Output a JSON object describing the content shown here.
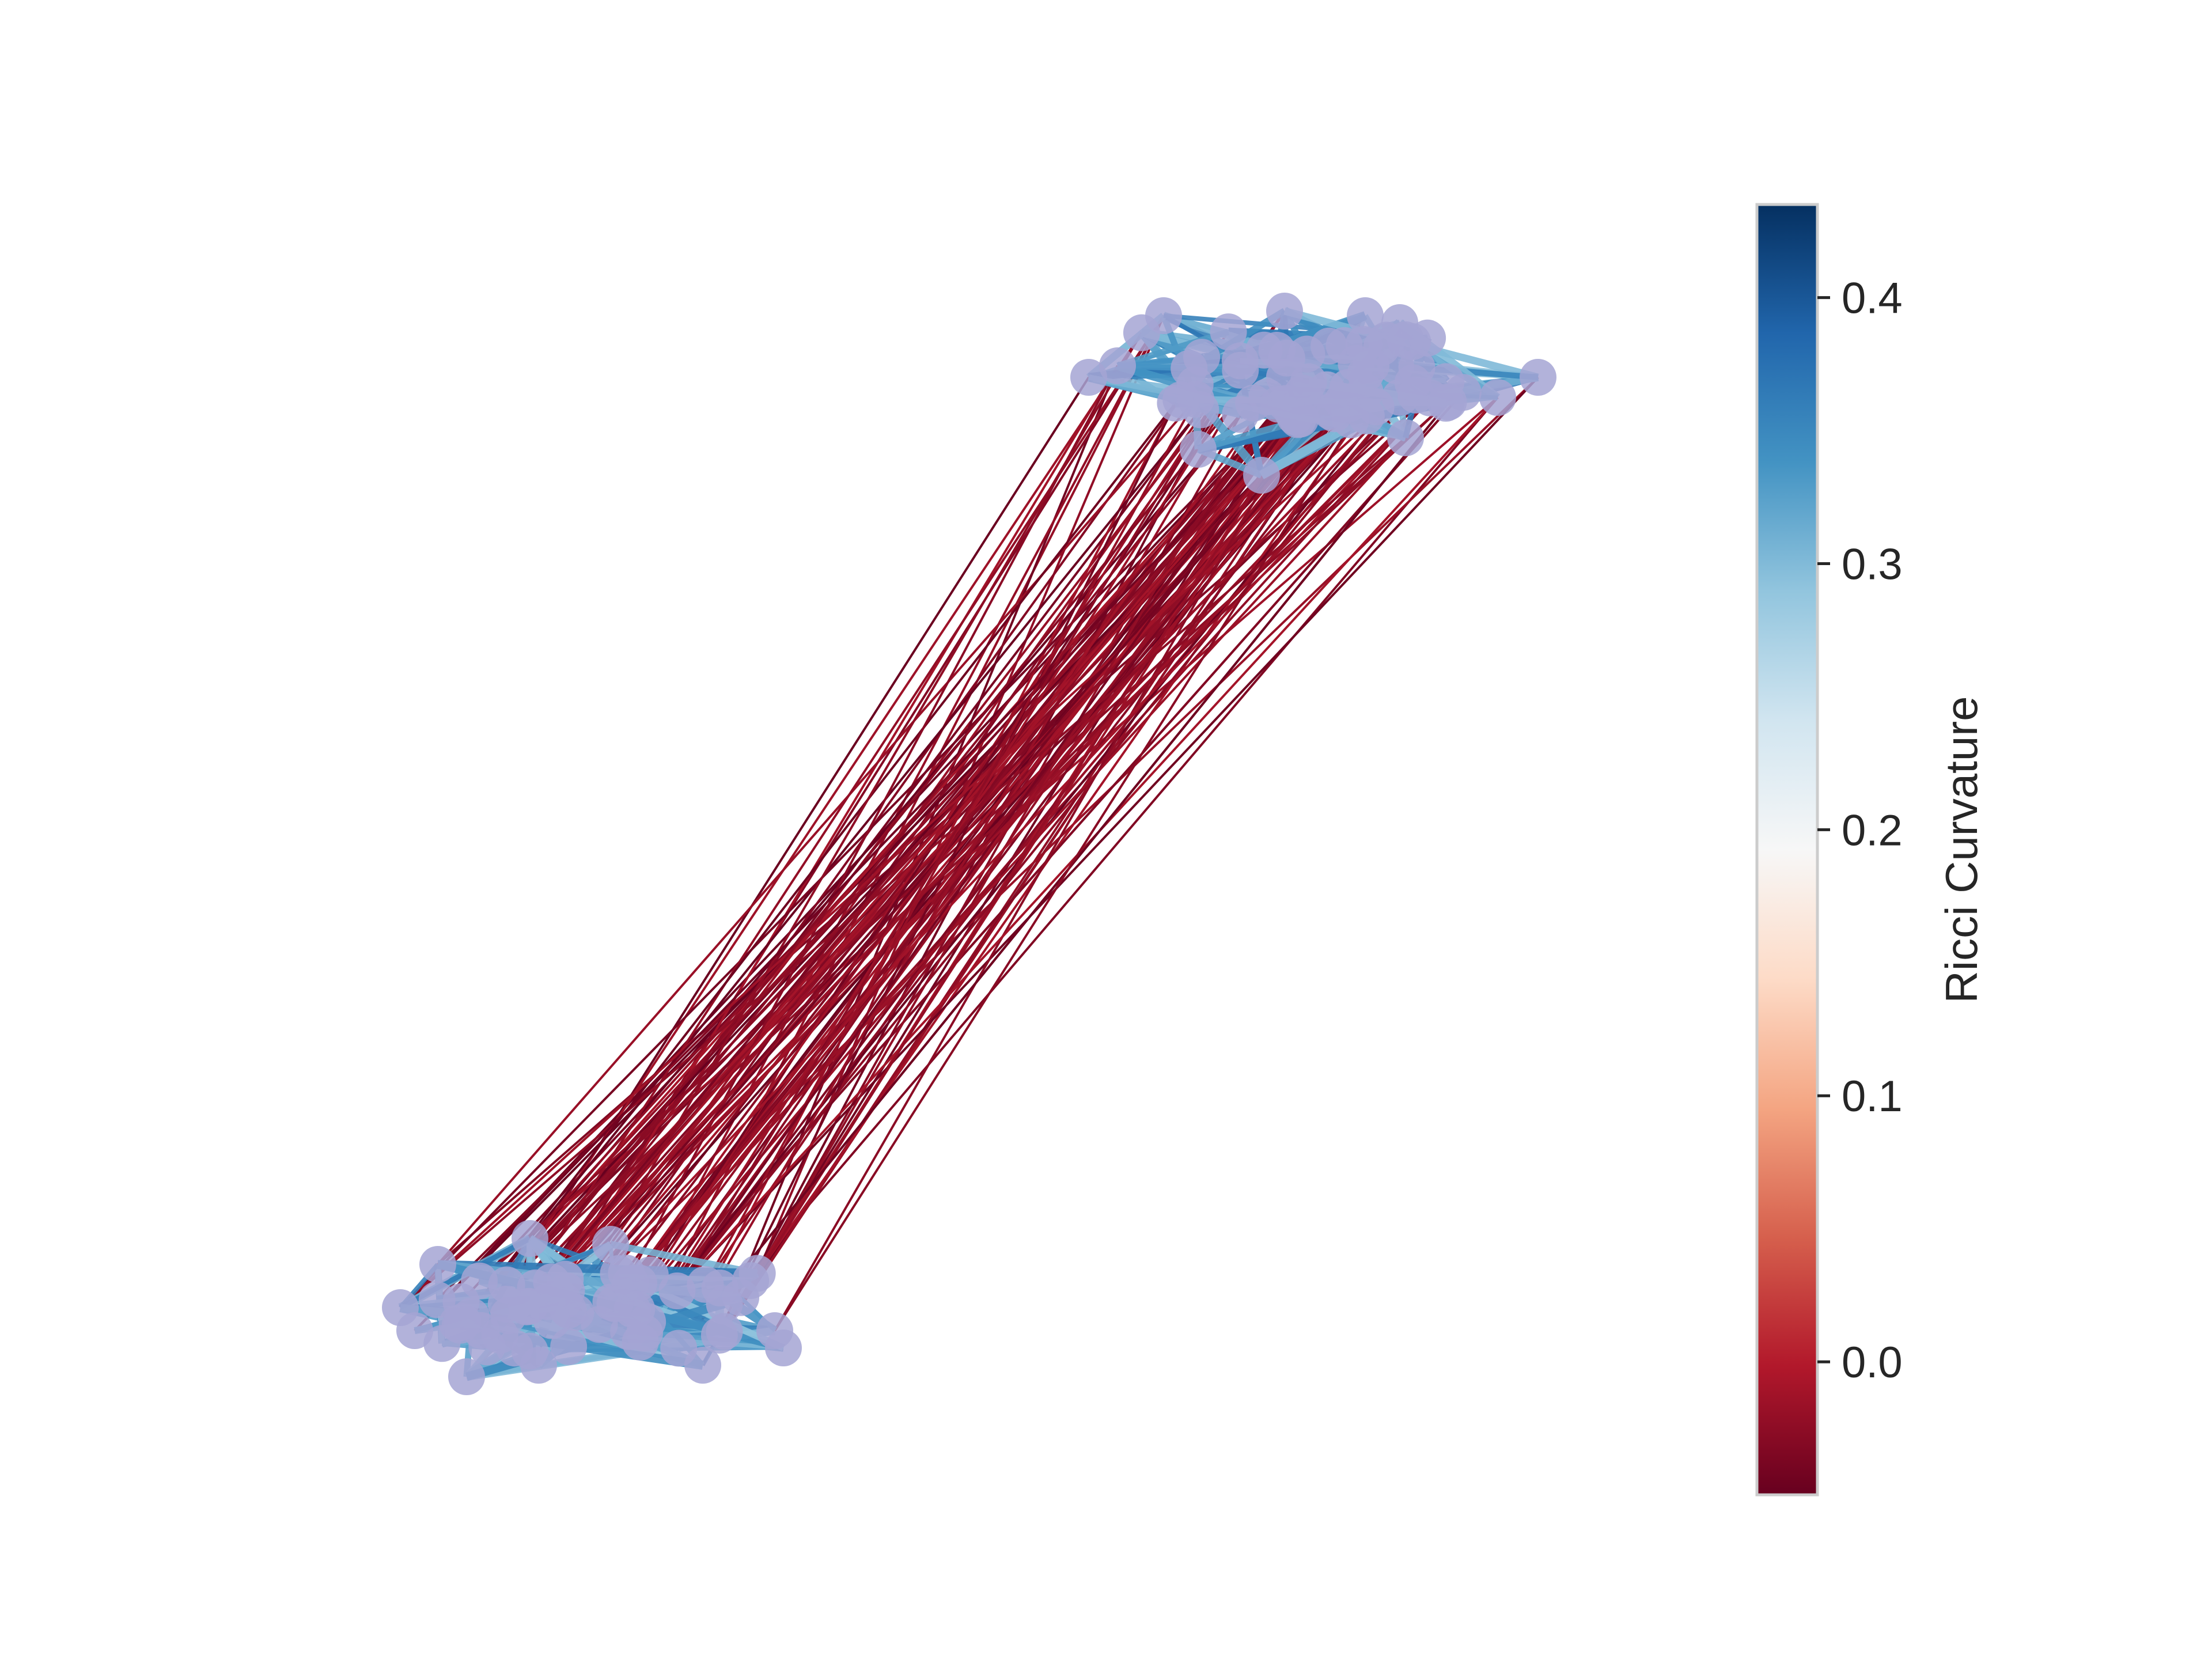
{
  "figure": {
    "colorbar": {
      "label": "Ricci Curvature",
      "vmin": -0.05,
      "vmax": 0.435,
      "ticks": [
        {
          "value": 0.0,
          "label": "0.0"
        },
        {
          "value": 0.1,
          "label": "0.1"
        },
        {
          "value": 0.2,
          "label": "0.2"
        },
        {
          "value": 0.3,
          "label": "0.3"
        },
        {
          "value": 0.4,
          "label": "0.4"
        }
      ],
      "colormap": [
        "#67001f",
        "#b2182b",
        "#d6604d",
        "#f4a582",
        "#fddbc7",
        "#f7f7f7",
        "#d1e5f0",
        "#92c5de",
        "#4393c3",
        "#2166ac",
        "#053061"
      ]
    },
    "graph": {
      "node_color": "#a5a5d3",
      "intra_cluster_curvature": 0.33,
      "inter_cluster_curvature": -0.03,
      "clusters": 2
    }
  }
}
